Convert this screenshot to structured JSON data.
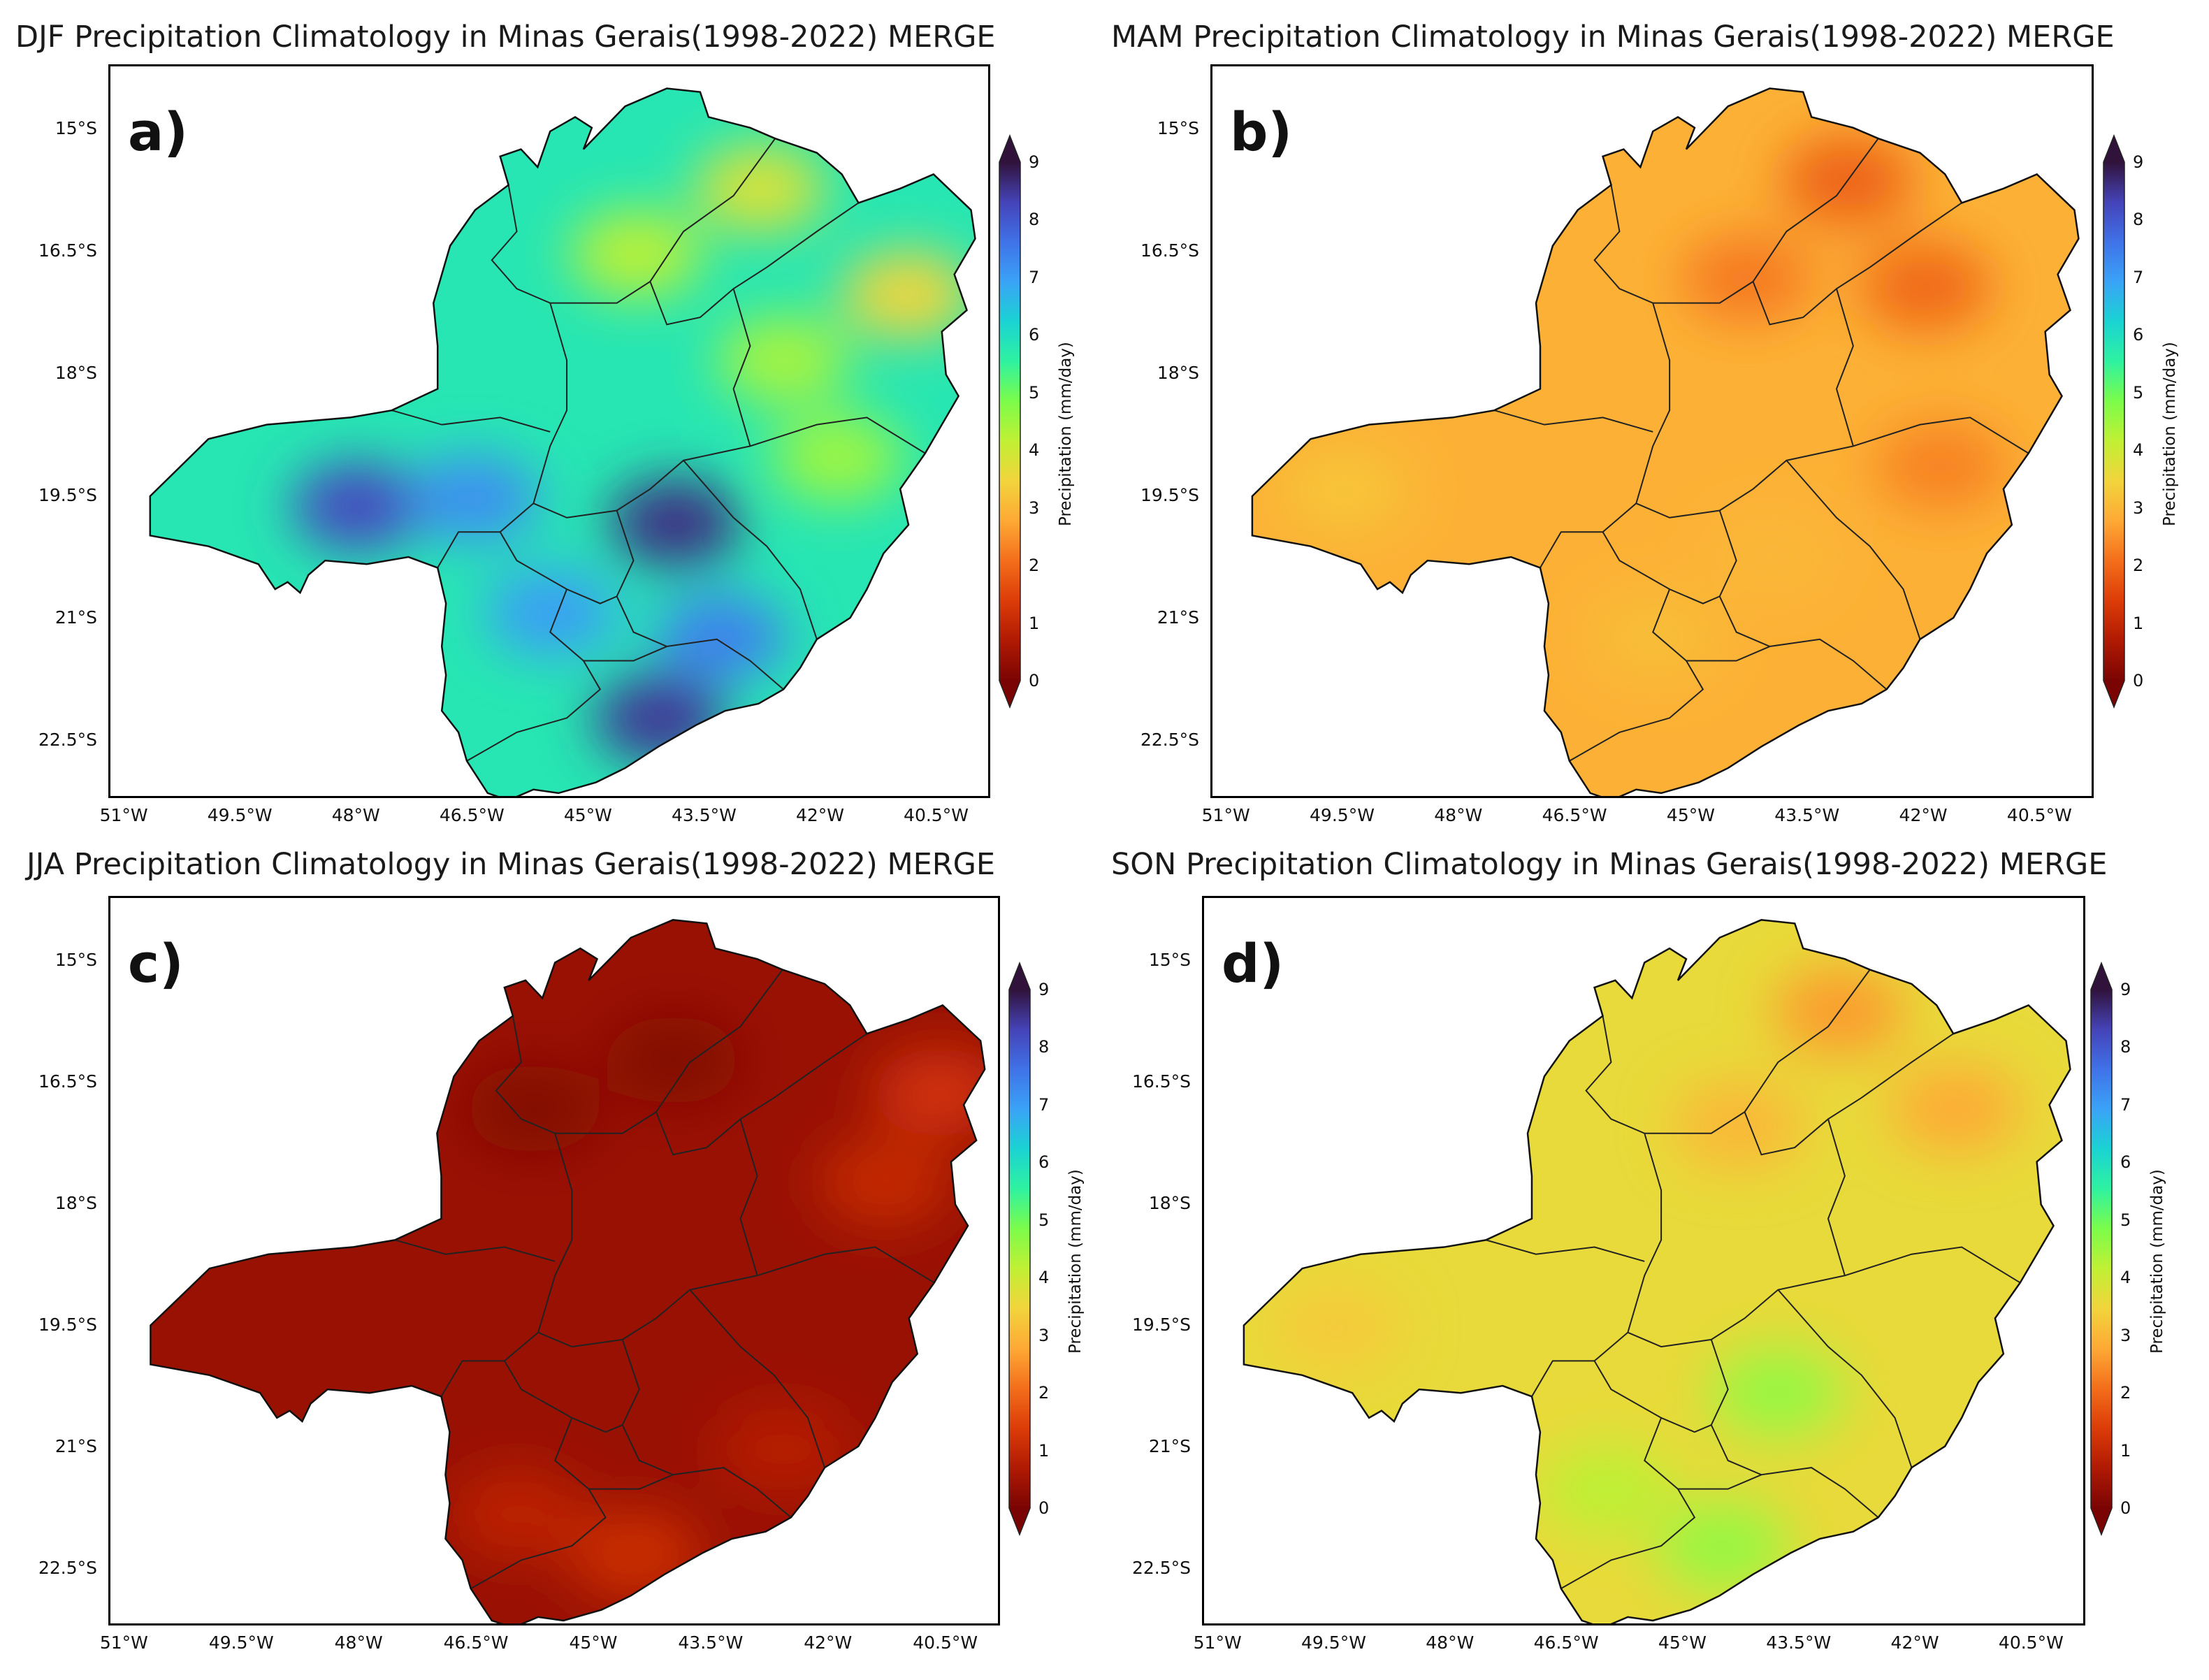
{
  "figure": {
    "colorbar": {
      "label": "Precipitation (mm/day)",
      "ticks": [
        "0",
        "1",
        "2",
        "3",
        "4",
        "5",
        "6",
        "7",
        "8",
        "9"
      ],
      "min": 0,
      "max": 9,
      "colors": [
        "#7a0403",
        "#b01a03",
        "#dc3c08",
        "#f36e1b",
        "#fea935",
        "#f2d43c",
        "#c1f034",
        "#7cfc4a",
        "#2ff2a0",
        "#1ad3d3",
        "#3aa3f7",
        "#4072e8",
        "#4543b8",
        "#30123b"
      ]
    },
    "axes": {
      "y_ticks": [
        "15°S",
        "16.5°S",
        "18°S",
        "19.5°S",
        "21°S",
        "22.5°S"
      ],
      "x_ticks": [
        "51°W",
        "49.5°W",
        "48°W",
        "46.5°W",
        "45°W",
        "43.5°W",
        "42°W",
        "40.5°W"
      ]
    }
  },
  "chart_data": [
    {
      "type": "heatmap",
      "panel_label": "a)",
      "title": "DJF Precipitation Climatology in Minas Gerais(1998-2022) MERGE",
      "season": "DJF",
      "xlabel": "",
      "ylabel": "",
      "xlim": [
        -51.2,
        -39.8
      ],
      "ylim": [
        -23.2,
        -14.2
      ],
      "clim": [
        0,
        9
      ],
      "base_value_mm_day": 5.8,
      "hotspots": [
        {
          "lon": -43.9,
          "lat": -19.8,
          "value": 8.6
        },
        {
          "lon": -48.0,
          "lat": -19.6,
          "value": 8.2
        },
        {
          "lon": -44.1,
          "lat": -22.2,
          "value": 8.5
        },
        {
          "lon": -43.3,
          "lat": -21.2,
          "value": 7.4
        },
        {
          "lon": -46.5,
          "lat": -19.5,
          "value": 7.2
        },
        {
          "lon": -45.5,
          "lat": -20.9,
          "value": 7.0
        },
        {
          "lon": -44.4,
          "lat": -16.5,
          "value": 4.2
        },
        {
          "lon": -42.8,
          "lat": -15.7,
          "value": 3.8
        },
        {
          "lon": -40.9,
          "lat": -17.0,
          "value": 3.5
        },
        {
          "lon": -41.8,
          "lat": -19.0,
          "value": 4.5
        },
        {
          "lon": -42.5,
          "lat": -17.8,
          "value": 4.4
        }
      ]
    },
    {
      "type": "heatmap",
      "panel_label": "b)",
      "title": "MAM Precipitation Climatology in Minas Gerais(1998-2022) MERGE",
      "season": "MAM",
      "xlabel": "",
      "ylabel": "",
      "xlim": [
        -51.2,
        -39.8
      ],
      "ylim": [
        -23.2,
        -14.2
      ],
      "clim": [
        0,
        9
      ],
      "base_value_mm_day": 2.9,
      "hotspots": [
        {
          "lon": -43.0,
          "lat": -15.6,
          "value": 1.9
        },
        {
          "lon": -42.0,
          "lat": -16.9,
          "value": 2.0
        },
        {
          "lon": -44.3,
          "lat": -16.8,
          "value": 2.2
        },
        {
          "lon": -41.8,
          "lat": -19.1,
          "value": 2.3
        },
        {
          "lon": -49.5,
          "lat": -19.4,
          "value": 3.2
        },
        {
          "lon": -45.5,
          "lat": -21.2,
          "value": 3.1
        },
        {
          "lon": -44.0,
          "lat": -20.2,
          "value": 3.0
        }
      ]
    },
    {
      "type": "heatmap",
      "panel_label": "c)",
      "title": "JJA Precipitation Climatology in Minas Gerais(1998-2022) MERGE",
      "season": "JJA",
      "xlabel": "",
      "ylabel": "",
      "xlim": [
        -51.2,
        -39.8
      ],
      "ylim": [
        -23.2,
        -14.2
      ],
      "clim": [
        0,
        9
      ],
      "base_value_mm_day": 0.4,
      "hotspots": [
        {
          "lon": -40.6,
          "lat": -16.6,
          "value": 1.2
        },
        {
          "lon": -41.3,
          "lat": -17.7,
          "value": 1.0
        },
        {
          "lon": -44.5,
          "lat": -22.3,
          "value": 1.1
        },
        {
          "lon": -46.0,
          "lat": -21.8,
          "value": 0.9
        },
        {
          "lon": -42.6,
          "lat": -21.0,
          "value": 0.8
        },
        {
          "lon": -44.0,
          "lat": -16.2,
          "value": 0.1
        },
        {
          "lon": -45.8,
          "lat": -16.8,
          "value": 0.1
        }
      ]
    },
    {
      "type": "heatmap",
      "panel_label": "d)",
      "title": "SON Precipitation Climatology in Minas Gerais(1998-2022) MERGE",
      "season": "SON",
      "xlabel": "",
      "ylabel": "",
      "xlim": [
        -51.2,
        -39.8
      ],
      "ylim": [
        -23.2,
        -14.2
      ],
      "clim": [
        0,
        9
      ],
      "base_value_mm_day": 3.6,
      "hotspots": [
        {
          "lon": -43.0,
          "lat": -15.6,
          "value": 2.6
        },
        {
          "lon": -41.5,
          "lat": -16.8,
          "value": 2.8
        },
        {
          "lon": -44.3,
          "lat": -17.0,
          "value": 3.0
        },
        {
          "lon": -43.8,
          "lat": -20.3,
          "value": 4.6
        },
        {
          "lon": -44.5,
          "lat": -22.2,
          "value": 4.6
        },
        {
          "lon": -46.0,
          "lat": -21.5,
          "value": 4.2
        },
        {
          "lon": -49.5,
          "lat": -19.5,
          "value": 3.3
        }
      ]
    }
  ]
}
